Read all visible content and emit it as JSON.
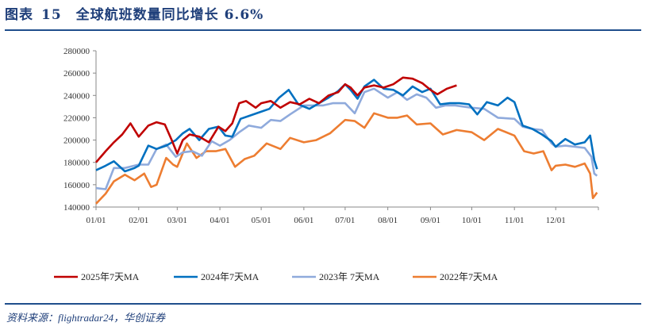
{
  "header": {
    "label": "图表",
    "number": "15",
    "title": "全球航班数量同比增长 6.6%"
  },
  "source": "资料来源：flightradar24，华创证券",
  "chart_data": {
    "type": "line",
    "title": "全球航班数量同比增长 6.6%",
    "xlabel": "",
    "ylabel": "",
    "ylim": [
      140000,
      280000
    ],
    "yticks": [
      "140000",
      "160000",
      "180000",
      "200000",
      "220000",
      "240000",
      "260000",
      "280000"
    ],
    "xticks": [
      "01/01",
      "02/01",
      "03/01",
      "04/01",
      "05/01",
      "06/01",
      "07/01",
      "08/01",
      "09/01",
      "10/01",
      "11/01",
      "12/01"
    ],
    "legend_position": "bottom",
    "series": [
      {
        "name": "2025年7天MA",
        "color": "#c00000",
        "points": [
          [
            "01/01",
            180000
          ],
          [
            "01/08",
            190000
          ],
          [
            "01/14",
            198000
          ],
          [
            "01/20",
            205000
          ],
          [
            "01/26",
            215000
          ],
          [
            "02/01",
            203000
          ],
          [
            "02/08",
            213000
          ],
          [
            "02/14",
            216000
          ],
          [
            "02/20",
            214000
          ],
          [
            "02/25",
            200000
          ],
          [
            "03/01",
            188000
          ],
          [
            "03/05",
            200000
          ],
          [
            "03/10",
            205000
          ],
          [
            "03/17",
            203000
          ],
          [
            "03/24",
            198000
          ],
          [
            "03/31",
            212000
          ],
          [
            "04/05",
            208000
          ],
          [
            "04/10",
            215000
          ],
          [
            "04/15",
            233000
          ],
          [
            "04/20",
            235000
          ],
          [
            "04/27",
            229000
          ],
          [
            "05/01",
            233000
          ],
          [
            "05/08",
            235000
          ],
          [
            "05/15",
            229000
          ],
          [
            "05/22",
            234000
          ],
          [
            "05/29",
            232000
          ],
          [
            "06/05",
            237000
          ],
          [
            "06/12",
            233000
          ],
          [
            "06/19",
            240000
          ],
          [
            "06/26",
            243000
          ],
          [
            "07/01",
            250000
          ],
          [
            "07/05",
            247000
          ],
          [
            "07/10",
            240000
          ],
          [
            "07/15",
            247000
          ],
          [
            "07/22",
            249000
          ],
          [
            "07/29",
            247000
          ],
          [
            "08/05",
            250000
          ],
          [
            "08/12",
            256000
          ],
          [
            "08/19",
            255000
          ],
          [
            "08/26",
            251000
          ],
          [
            "09/01",
            245000
          ],
          [
            "09/06",
            241000
          ],
          [
            "09/13",
            246000
          ],
          [
            "09/20",
            249000
          ]
        ]
      },
      {
        "name": "2024年7天MA",
        "color": "#0070c0",
        "points": [
          [
            "01/01",
            173000
          ],
          [
            "01/08",
            177000
          ],
          [
            "01/14",
            181000
          ],
          [
            "01/22",
            172000
          ],
          [
            "01/29",
            175000
          ],
          [
            "02/01",
            177000
          ],
          [
            "02/08",
            195000
          ],
          [
            "02/14",
            192000
          ],
          [
            "02/21",
            195000
          ],
          [
            "02/28",
            200000
          ],
          [
            "03/05",
            206000
          ],
          [
            "03/10",
            210000
          ],
          [
            "03/17",
            200000
          ],
          [
            "03/24",
            210000
          ],
          [
            "03/31",
            212000
          ],
          [
            "04/05",
            204000
          ],
          [
            "04/10",
            203000
          ],
          [
            "04/16",
            219000
          ],
          [
            "04/23",
            222000
          ],
          [
            "04/30",
            225000
          ],
          [
            "05/07",
            228000
          ],
          [
            "05/14",
            238000
          ],
          [
            "05/21",
            245000
          ],
          [
            "05/28",
            232000
          ],
          [
            "06/05",
            228000
          ],
          [
            "06/12",
            233000
          ],
          [
            "06/19",
            238000
          ],
          [
            "06/26",
            244000
          ],
          [
            "07/01",
            250000
          ],
          [
            "07/05",
            245000
          ],
          [
            "07/10",
            237000
          ],
          [
            "07/15",
            248000
          ],
          [
            "07/22",
            254000
          ],
          [
            "07/29",
            246000
          ],
          [
            "08/05",
            245000
          ],
          [
            "08/12",
            240000
          ],
          [
            "08/19",
            248000
          ],
          [
            "08/26",
            243000
          ],
          [
            "09/01",
            246000
          ],
          [
            "09/08",
            232000
          ],
          [
            "09/15",
            233000
          ],
          [
            "09/22",
            233000
          ],
          [
            "09/29",
            232000
          ],
          [
            "10/05",
            223000
          ],
          [
            "10/12",
            234000
          ],
          [
            "10/20",
            231000
          ],
          [
            "10/27",
            238000
          ],
          [
            "11/01",
            234000
          ],
          [
            "11/07",
            213000
          ],
          [
            "11/14",
            210000
          ],
          [
            "11/21",
            205000
          ],
          [
            "11/28",
            199000
          ],
          [
            "12/01",
            194000
          ],
          [
            "12/08",
            201000
          ],
          [
            "12/15",
            196000
          ],
          [
            "12/22",
            198000
          ],
          [
            "12/26",
            204000
          ],
          [
            "12/29",
            182000
          ],
          [
            "12/31",
            174000
          ]
        ]
      },
      {
        "name": "2023年 7天MA",
        "color": "#8faadc",
        "points": [
          [
            "01/01",
            157000
          ],
          [
            "01/08",
            156000
          ],
          [
            "01/14",
            175000
          ],
          [
            "01/22",
            175000
          ],
          [
            "02/01",
            178000
          ],
          [
            "02/08",
            178000
          ],
          [
            "02/14",
            192000
          ],
          [
            "02/21",
            196000
          ],
          [
            "02/28",
            185000
          ],
          [
            "03/05",
            189000
          ],
          [
            "03/12",
            190000
          ],
          [
            "03/19",
            186000
          ],
          [
            "03/26",
            199000
          ],
          [
            "04/01",
            195000
          ],
          [
            "04/08",
            200000
          ],
          [
            "04/15",
            207000
          ],
          [
            "04/22",
            213000
          ],
          [
            "05/01",
            211000
          ],
          [
            "05/08",
            218000
          ],
          [
            "05/15",
            217000
          ],
          [
            "05/22",
            223000
          ],
          [
            "06/01",
            231000
          ],
          [
            "06/08",
            231000
          ],
          [
            "06/15",
            231000
          ],
          [
            "06/22",
            233000
          ],
          [
            "07/01",
            233000
          ],
          [
            "07/08",
            224000
          ],
          [
            "07/15",
            243000
          ],
          [
            "07/22",
            246000
          ],
          [
            "08/01",
            238000
          ],
          [
            "08/08",
            243000
          ],
          [
            "08/15",
            236000
          ],
          [
            "08/22",
            241000
          ],
          [
            "08/29",
            238000
          ],
          [
            "09/05",
            229000
          ],
          [
            "09/12",
            231000
          ],
          [
            "09/19",
            231000
          ],
          [
            "10/01",
            229000
          ],
          [
            "10/10",
            228000
          ],
          [
            "10/20",
            220000
          ],
          [
            "11/01",
            219000
          ],
          [
            "11/07",
            212000
          ],
          [
            "11/14",
            210000
          ],
          [
            "11/21",
            209000
          ],
          [
            "11/28",
            197000
          ],
          [
            "12/01",
            194000
          ],
          [
            "12/08",
            195000
          ],
          [
            "12/15",
            194000
          ],
          [
            "12/22",
            193000
          ],
          [
            "12/27",
            185000
          ],
          [
            "12/29",
            170000
          ],
          [
            "12/31",
            168000
          ]
        ]
      },
      {
        "name": "2022年7天MA",
        "color": "#ed7d31",
        "points": [
          [
            "01/01",
            143000
          ],
          [
            "01/08",
            152000
          ],
          [
            "01/14",
            163000
          ],
          [
            "01/22",
            169000
          ],
          [
            "01/29",
            164000
          ],
          [
            "02/05",
            170000
          ],
          [
            "02/10",
            158000
          ],
          [
            "02/14",
            160000
          ],
          [
            "02/21",
            184000
          ],
          [
            "02/26",
            178000
          ],
          [
            "03/01",
            176000
          ],
          [
            "03/08",
            197000
          ],
          [
            "03/15",
            184000
          ],
          [
            "03/22",
            190000
          ],
          [
            "03/29",
            190000
          ],
          [
            "04/05",
            192000
          ],
          [
            "04/12",
            176000
          ],
          [
            "04/19",
            183000
          ],
          [
            "04/26",
            186000
          ],
          [
            "05/05",
            197000
          ],
          [
            "05/15",
            192000
          ],
          [
            "05/22",
            202000
          ],
          [
            "06/01",
            198000
          ],
          [
            "06/10",
            200000
          ],
          [
            "06/20",
            206000
          ],
          [
            "07/01",
            218000
          ],
          [
            "07/08",
            217000
          ],
          [
            "07/15",
            211000
          ],
          [
            "07/22",
            224000
          ],
          [
            "08/01",
            220000
          ],
          [
            "08/08",
            220000
          ],
          [
            "08/15",
            222000
          ],
          [
            "08/22",
            214000
          ],
          [
            "09/01",
            215000
          ],
          [
            "09/10",
            205000
          ],
          [
            "09/20",
            209000
          ],
          [
            "10/01",
            207000
          ],
          [
            "10/10",
            200000
          ],
          [
            "10/20",
            210000
          ],
          [
            "11/01",
            204000
          ],
          [
            "11/08",
            190000
          ],
          [
            "11/15",
            188000
          ],
          [
            "11/22",
            190000
          ],
          [
            "11/28",
            173000
          ],
          [
            "12/01",
            177000
          ],
          [
            "12/08",
            178000
          ],
          [
            "12/15",
            176000
          ],
          [
            "12/22",
            179000
          ],
          [
            "12/26",
            170000
          ],
          [
            "12/28",
            148000
          ],
          [
            "12/31",
            153000
          ]
        ]
      }
    ]
  }
}
